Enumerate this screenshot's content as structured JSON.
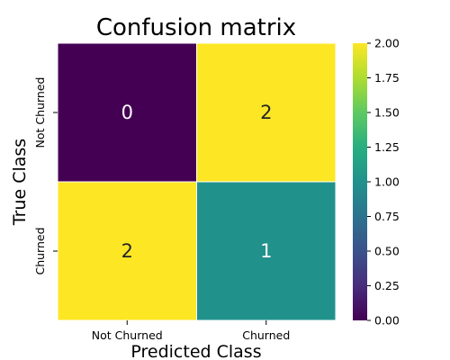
{
  "chart_data": {
    "type": "heatmap",
    "title": "Confusion matrix",
    "xlabel": "Predicted Class",
    "ylabel": "True Class",
    "x_categories": [
      "Not Churned",
      "Churned"
    ],
    "y_categories": [
      "Not Churned",
      "Churned"
    ],
    "values": [
      [
        0,
        2
      ],
      [
        2,
        1
      ]
    ],
    "colorbar": {
      "range": [
        0.0,
        2.0
      ],
      "ticks": [
        "0.00",
        "0.25",
        "0.50",
        "0.75",
        "1.00",
        "1.25",
        "1.50",
        "1.75",
        "2.00"
      ],
      "colormap": "viridis"
    },
    "cell_label_colors": {
      "dark": "#ffffff",
      "light": "#262626"
    }
  }
}
